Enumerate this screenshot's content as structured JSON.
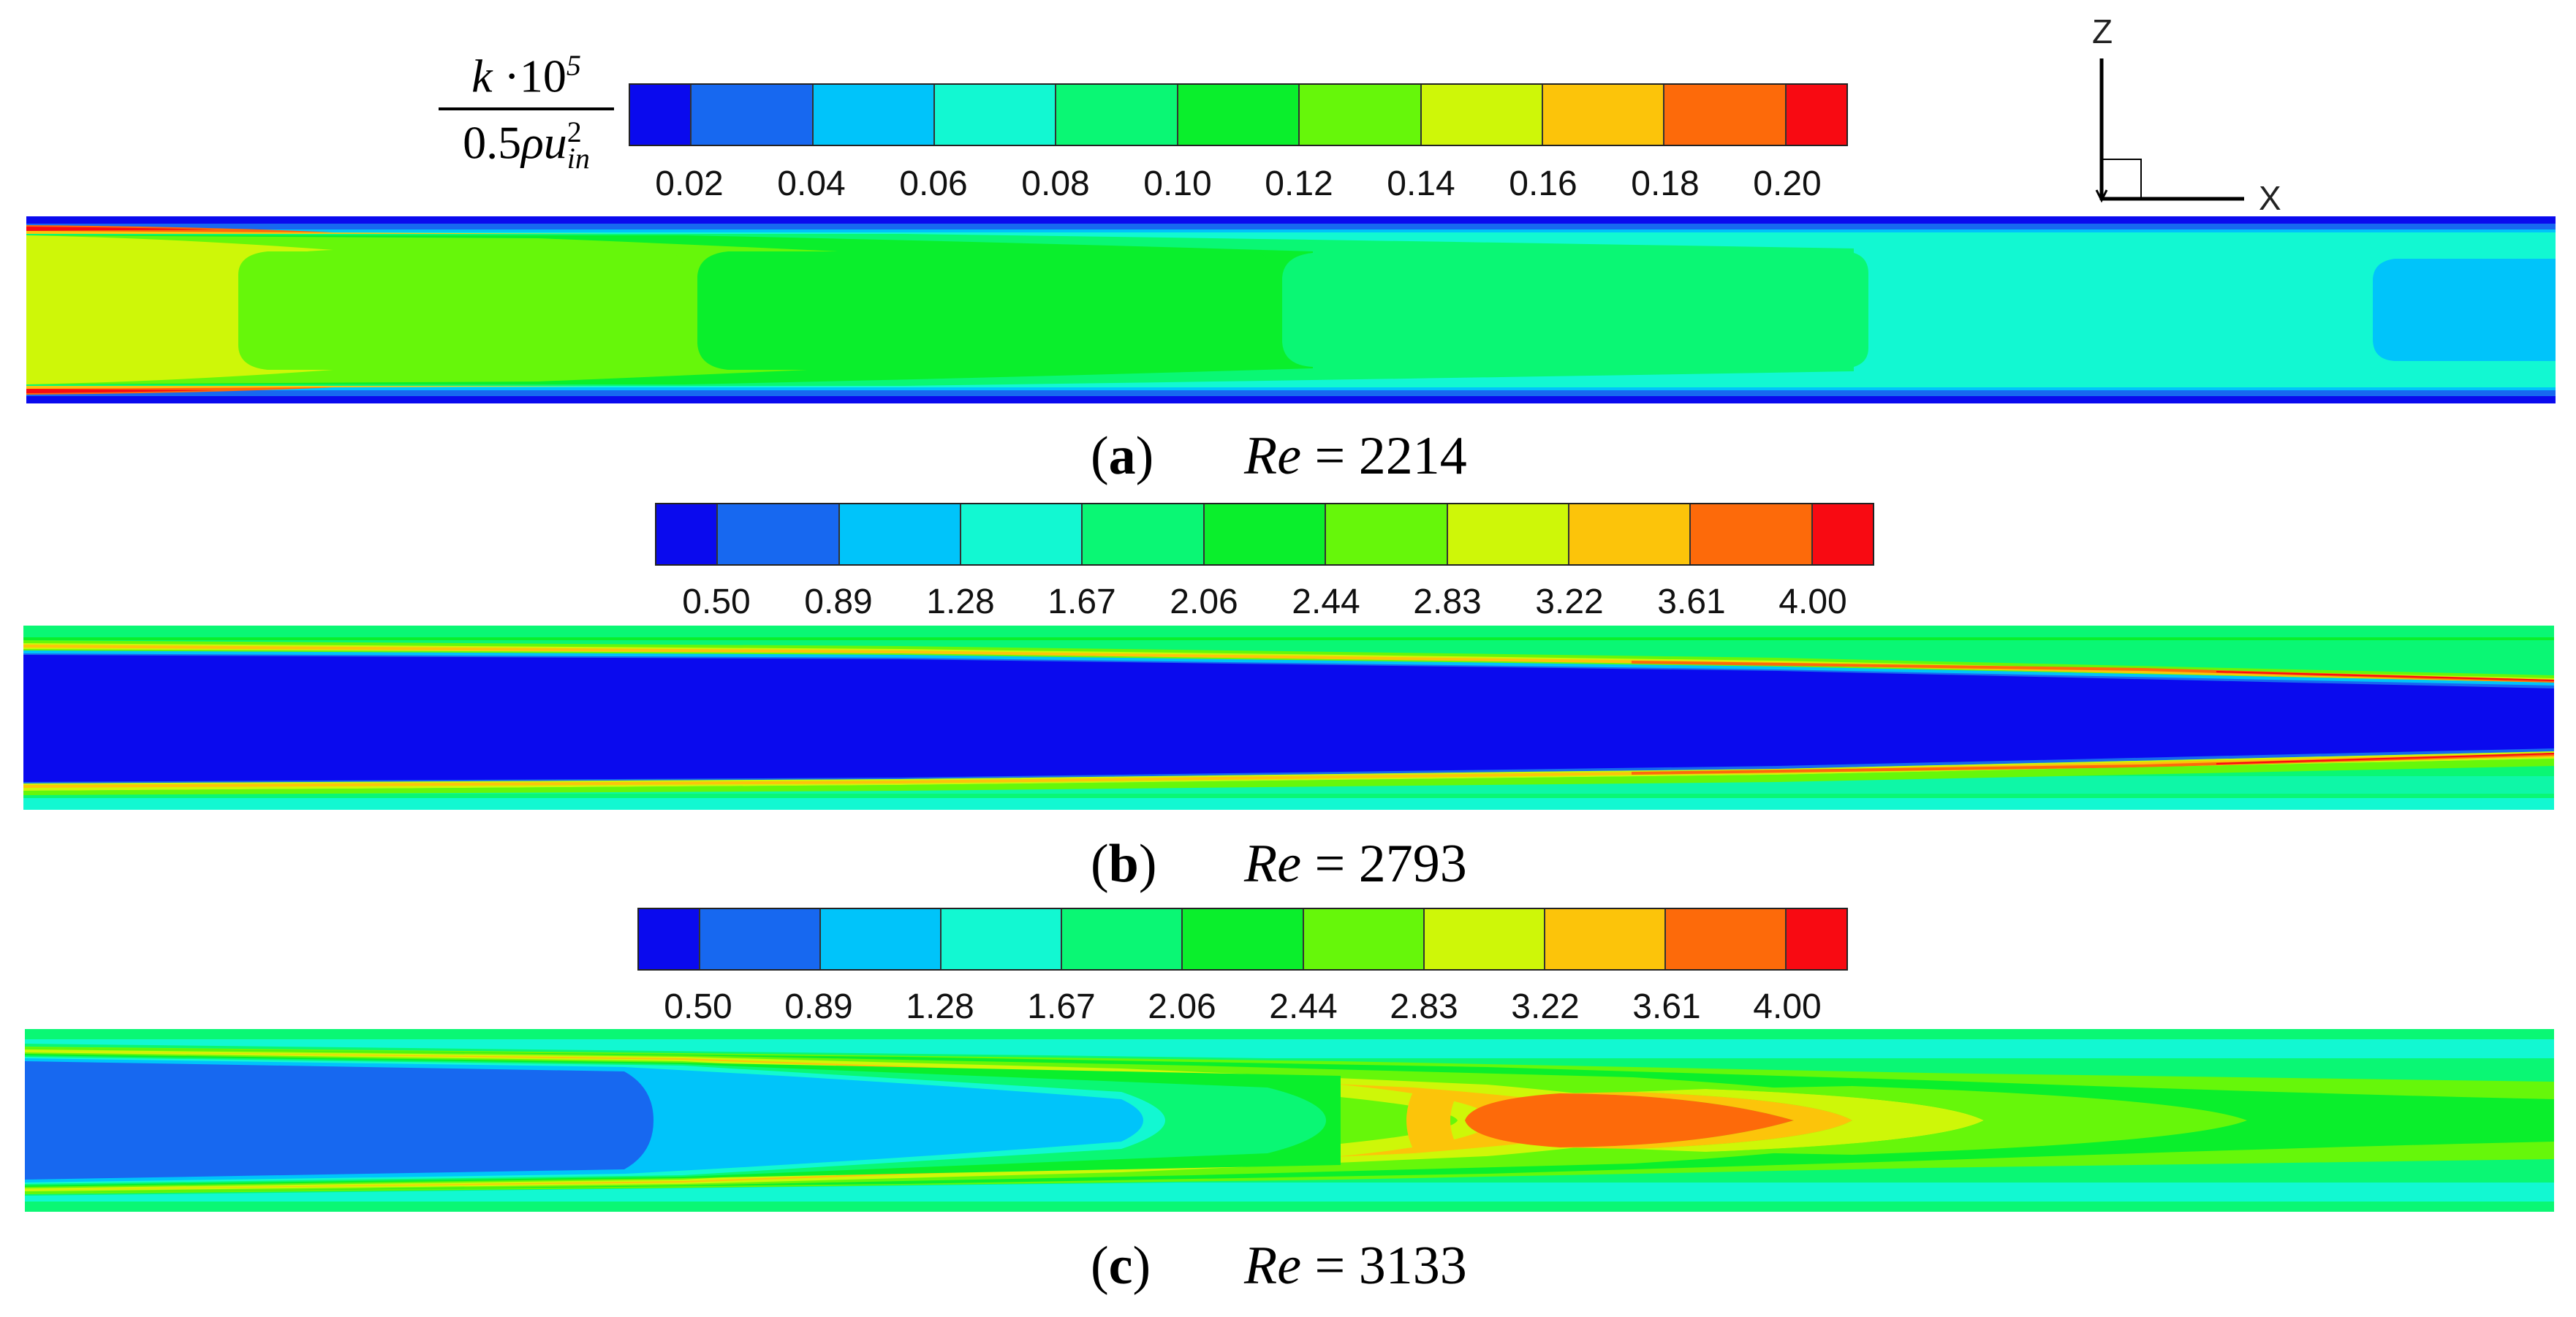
{
  "colors": {
    "levels": [
      "#0a0aee",
      "#1768f0",
      "#00c4fa",
      "#12f8d2",
      "#0af774",
      "#0aef2c",
      "#66f70a",
      "#cef708",
      "#fcc40a",
      "#fd6a0a",
      "#f80a12"
    ]
  },
  "legend_label": {
    "numerator": "k",
    "numerator_mid": " ·10",
    "numerator_sup": "5",
    "denominator_coef": "0.5",
    "denominator_rho": "ρu",
    "denominator_sup": "2",
    "denominator_sub": "in"
  },
  "axes_triad": {
    "z": "Z",
    "x": "X"
  },
  "panels": [
    {
      "letter": "a",
      "re_label": "Re",
      "re_value": "= 2214",
      "ticks": [
        "0.02",
        "0.04",
        "0.06",
        "0.08",
        "0.10",
        "0.12",
        "0.14",
        "0.16",
        "0.18",
        "0.20"
      ]
    },
    {
      "letter": "b",
      "re_label": "Re",
      "re_value": "= 2793",
      "ticks": [
        "0.50",
        "0.89",
        "1.28",
        "1.67",
        "2.06",
        "2.44",
        "2.83",
        "3.22",
        "3.61",
        "4.00"
      ]
    },
    {
      "letter": "c",
      "re_label": "Re",
      "re_value": "= 3133",
      "ticks": [
        "0.50",
        "0.89",
        "1.28",
        "1.67",
        "2.06",
        "2.44",
        "2.83",
        "3.22",
        "3.61",
        "4.00"
      ]
    }
  ]
}
